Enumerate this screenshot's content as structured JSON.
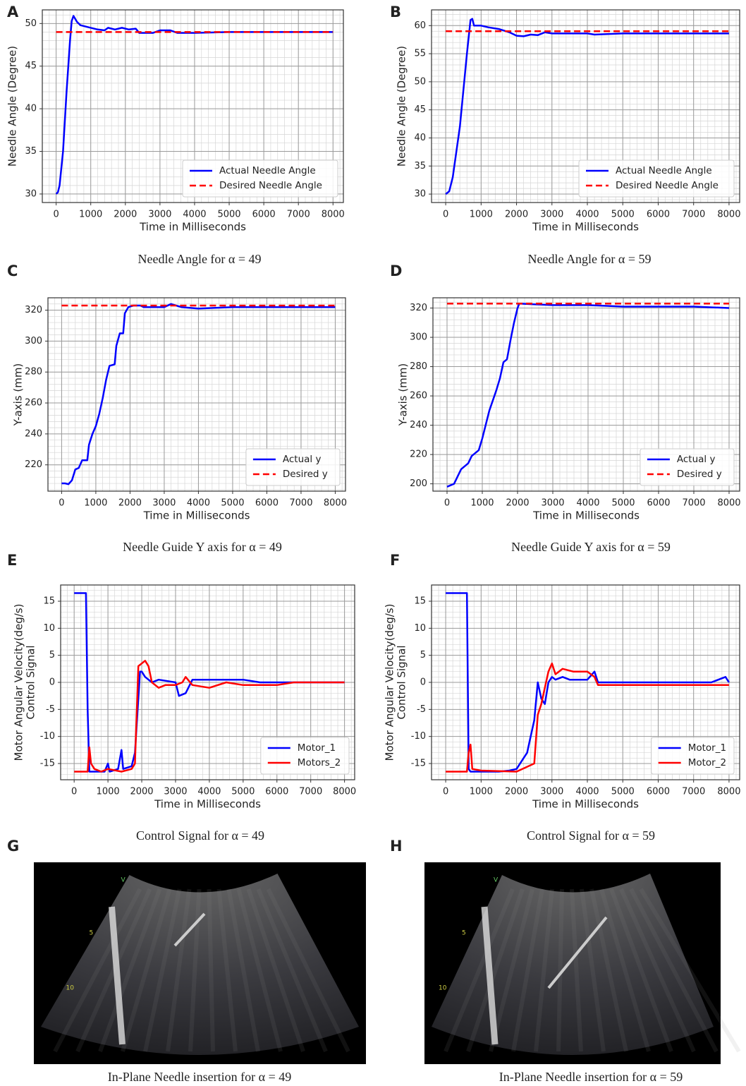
{
  "chart_data": [
    {
      "type": "line",
      "panel_label": "A",
      "caption": "Needle Angle for α = 49",
      "xlabel": "Time in Milliseconds",
      "ylabel": [
        "Needle Angle (Degree)"
      ],
      "xlim": [
        -400,
        8300
      ],
      "ylim": [
        29,
        51.6
      ],
      "xticks": [
        0,
        1000,
        2000,
        3000,
        4000,
        5000,
        6000,
        7000,
        8000
      ],
      "yticks": [
        30,
        35,
        40,
        45,
        50
      ],
      "grid": true,
      "minor_grid": 5,
      "legend": "lower right",
      "series": [
        {
          "name": "Actual Needle Angle",
          "color": "#0000ff",
          "style": "solid",
          "x": [
            0,
            50,
            100,
            200,
            300,
            400,
            450,
            500,
            600,
            700,
            900,
            1200,
            1400,
            1500,
            1700,
            1900,
            2100,
            2300,
            2400,
            2800,
            3000,
            3300,
            3500,
            4000,
            5000,
            6000,
            7000,
            8000
          ],
          "values": [
            30,
            30.2,
            31,
            35,
            42,
            48,
            50.3,
            50.9,
            50.2,
            49.8,
            49.6,
            49.3,
            49.2,
            49.5,
            49.3,
            49.5,
            49.3,
            49.4,
            48.9,
            48.9,
            49.2,
            49.2,
            48.9,
            48.9,
            49,
            49,
            49,
            49
          ]
        },
        {
          "name": "Desired Needle Angle",
          "color": "#ff0000",
          "style": "dashed",
          "x": [
            0,
            8000
          ],
          "values": [
            49,
            49
          ]
        }
      ]
    },
    {
      "type": "line",
      "panel_label": "B",
      "caption": "Needle Angle for α = 59",
      "xlabel": "Time in Milliseconds",
      "ylabel": [
        "Needle Angle (Degree)"
      ],
      "xlim": [
        -400,
        8300
      ],
      "ylim": [
        28.5,
        62.8
      ],
      "xticks": [
        0,
        1000,
        2000,
        3000,
        4000,
        5000,
        6000,
        7000,
        8000
      ],
      "yticks": [
        30,
        35,
        40,
        45,
        50,
        55,
        60
      ],
      "grid": true,
      "minor_grid": 5,
      "legend": "lower right",
      "series": [
        {
          "name": "Actual Needle Angle",
          "color": "#0000ff",
          "style": "solid",
          "x": [
            0,
            100,
            200,
            400,
            600,
            700,
            750,
            800,
            1000,
            1200,
            1500,
            1800,
            2000,
            2200,
            2400,
            2600,
            2800,
            3000,
            4000,
            4200,
            5000,
            6000,
            7000,
            8000
          ],
          "values": [
            30,
            30.5,
            33,
            42,
            55,
            61,
            61.2,
            60,
            60,
            59.7,
            59.4,
            58.8,
            58.2,
            58.1,
            58.4,
            58.3,
            58.8,
            58.6,
            58.6,
            58.4,
            58.6,
            58.6,
            58.6,
            58.6
          ]
        },
        {
          "name": "Desired Needle Angle",
          "color": "#ff0000",
          "style": "dashed",
          "x": [
            0,
            8000
          ],
          "values": [
            59,
            59
          ]
        }
      ]
    },
    {
      "type": "line",
      "panel_label": "C",
      "caption": "Needle Guide Y axis for α = 49",
      "xlabel": "Time in Milliseconds",
      "ylabel": [
        "Y-axis (mm)"
      ],
      "xlim": [
        -400,
        8300
      ],
      "ylim": [
        203,
        328
      ],
      "xticks": [
        0,
        1000,
        2000,
        3000,
        4000,
        5000,
        6000,
        7000,
        8000
      ],
      "yticks": [
        220,
        240,
        260,
        280,
        300,
        320
      ],
      "grid": true,
      "minor_grid": 5,
      "legend": "lower right",
      "series": [
        {
          "name": "Actual y",
          "color": "#0000ff",
          "style": "solid",
          "x": [
            0,
            100,
            200,
            300,
            400,
            500,
            600,
            750,
            800,
            900,
            1000,
            1100,
            1200,
            1300,
            1400,
            1550,
            1600,
            1700,
            1800,
            1850,
            1950,
            2100,
            2300,
            2400,
            3000,
            3200,
            3500,
            4000,
            5000,
            6000,
            7000,
            8000
          ],
          "values": [
            208,
            208,
            207.5,
            210,
            217,
            218,
            223,
            223,
            233,
            240,
            245,
            253,
            263,
            275,
            284,
            285,
            297,
            305,
            305,
            318,
            322,
            323,
            323,
            322,
            322,
            324,
            322,
            321,
            322,
            322,
            322,
            322
          ]
        },
        {
          "name": "Desired y",
          "color": "#ff0000",
          "style": "dashed",
          "x": [
            0,
            8000
          ],
          "values": [
            323,
            323
          ]
        }
      ]
    },
    {
      "type": "line",
      "panel_label": "D",
      "caption": "Needle Guide Y axis for α = 59",
      "xlabel": "Time in Milliseconds",
      "ylabel": [
        "Y-axis (mm)"
      ],
      "xlim": [
        -400,
        8300
      ],
      "ylim": [
        195,
        327
      ],
      "xticks": [
        0,
        1000,
        2000,
        3000,
        4000,
        5000,
        6000,
        7000,
        8000
      ],
      "yticks": [
        200,
        220,
        240,
        260,
        280,
        300,
        320
      ],
      "grid": true,
      "minor_grid": 5,
      "legend": "lower right",
      "series": [
        {
          "name": "Actual y",
          "color": "#0000ff",
          "style": "solid",
          "x": [
            0,
            100,
            200,
            300,
            400,
            600,
            700,
            900,
            1000,
            1200,
            1400,
            1500,
            1600,
            1700,
            1800,
            1900,
            2000,
            2050,
            3000,
            4000,
            5000,
            6000,
            7000,
            8000
          ],
          "values": [
            198,
            199,
            200,
            205,
            210,
            214,
            219,
            223,
            231,
            250,
            264,
            272,
            283,
            285,
            298,
            310,
            320,
            323,
            322,
            322,
            321,
            321,
            321,
            320
          ]
        },
        {
          "name": "Desired y",
          "color": "#ff0000",
          "style": "dashed",
          "x": [
            0,
            8000
          ],
          "values": [
            323,
            323
          ]
        }
      ]
    },
    {
      "type": "line",
      "panel_label": "E",
      "caption": "Control Signal for α = 49",
      "xlabel": "Time in Milliseconds",
      "ylabel": [
        "Motor Angular Velocity(deg/s)",
        "Control Signal"
      ],
      "xlim": [
        -400,
        8300
      ],
      "ylim": [
        -18,
        18
      ],
      "xticks": [
        0,
        1000,
        2000,
        3000,
        4000,
        5000,
        6000,
        7000,
        8000
      ],
      "yticks": [
        -15,
        -10,
        -5,
        0,
        5,
        10,
        15
      ],
      "grid": true,
      "minor_grid": 5,
      "legend": "lower right",
      "series": [
        {
          "name": "Motor_1",
          "color": "#0000ff",
          "style": "solid",
          "x": [
            0,
            350,
            400,
            450,
            900,
            1000,
            1050,
            1300,
            1400,
            1450,
            1700,
            1800,
            1900,
            1950,
            2000,
            2100,
            2300,
            2500,
            3000,
            3100,
            3300,
            3500,
            4000,
            4500,
            5000,
            5500,
            6000,
            7000,
            8000
          ],
          "values": [
            16.5,
            16.5,
            -5,
            -16.5,
            -16.5,
            -15,
            -16.5,
            -16,
            -12.5,
            -16,
            -15.5,
            -13,
            -3,
            2,
            2,
            1,
            0,
            0.5,
            0,
            -2.5,
            -2,
            0.5,
            0.5,
            0.5,
            0.5,
            0,
            0,
            0,
            0
          ]
        },
        {
          "name": "Motors_2",
          "color": "#ff0000",
          "style": "solid",
          "x": [
            0,
            400,
            450,
            500,
            600,
            800,
            1000,
            1400,
            1700,
            1800,
            1900,
            2000,
            2100,
            2200,
            2300,
            2500,
            2700,
            3000,
            3200,
            3300,
            3500,
            4000,
            4500,
            5000,
            5500,
            6000,
            6500,
            7000,
            7500,
            8000
          ],
          "values": [
            -16.5,
            -16.5,
            -12,
            -15,
            -16,
            -16.5,
            -16,
            -16.5,
            -16,
            -15,
            3,
            3.5,
            4,
            3,
            0,
            -1,
            -0.5,
            -0.5,
            0,
            1,
            -0.5,
            -1,
            0,
            -0.5,
            -0.5,
            -0.5,
            0,
            0,
            0,
            0
          ]
        }
      ]
    },
    {
      "type": "line",
      "panel_label": "F",
      "caption": "Control Signal for α = 59",
      "xlabel": "Time in Milliseconds",
      "ylabel": [
        "Motor Angular Velocity(deg/s)",
        "Control Signal"
      ],
      "xlim": [
        -400,
        8300
      ],
      "ylim": [
        -18,
        18
      ],
      "xticks": [
        0,
        1000,
        2000,
        3000,
        4000,
        5000,
        6000,
        7000,
        8000
      ],
      "yticks": [
        -15,
        -10,
        -5,
        0,
        5,
        10,
        15
      ],
      "grid": true,
      "minor_grid": 5,
      "legend": "lower right",
      "series": [
        {
          "name": "Motor_1",
          "color": "#0000ff",
          "style": "solid",
          "x": [
            0,
            600,
            650,
            700,
            1500,
            1800,
            2000,
            2200,
            2300,
            2400,
            2500,
            2600,
            2700,
            2800,
            2900,
            3000,
            3100,
            3300,
            3500,
            4000,
            4200,
            4300,
            4500,
            5000,
            6000,
            7000,
            7500,
            7900,
            8000
          ],
          "values": [
            16.5,
            16.5,
            -16,
            -16.5,
            -16.5,
            -16.3,
            -16,
            -14,
            -13,
            -10,
            -7,
            0,
            -3,
            -4,
            0,
            1,
            0.5,
            1,
            0.5,
            0.5,
            2,
            0,
            0,
            0,
            0,
            0,
            0,
            1,
            0
          ]
        },
        {
          "name": "Motor_2",
          "color": "#ff0000",
          "style": "solid",
          "x": [
            0,
            600,
            650,
            700,
            750,
            1000,
            2000,
            2500,
            2600,
            2700,
            2800,
            2900,
            3000,
            3100,
            3300,
            3600,
            4000,
            4200,
            4300,
            5000,
            6000,
            7000,
            8000
          ],
          "values": [
            -16.5,
            -16.5,
            -13,
            -11.5,
            -16,
            -16.3,
            -16.5,
            -15,
            -6,
            -4,
            -1,
            2,
            3.5,
            1.5,
            2.5,
            2,
            2,
            1,
            -0.5,
            -0.5,
            -0.5,
            -0.5,
            -0.5
          ]
        }
      ]
    }
  ],
  "images": [
    {
      "panel_label": "G",
      "caption": "In-Plane Needle insertion for α = 49",
      "labels": [
        "V",
        "5",
        "10"
      ]
    },
    {
      "panel_label": "H",
      "caption": "In-Plane Needle insertion for α = 59",
      "labels": [
        "V",
        "5",
        "10"
      ]
    }
  ]
}
